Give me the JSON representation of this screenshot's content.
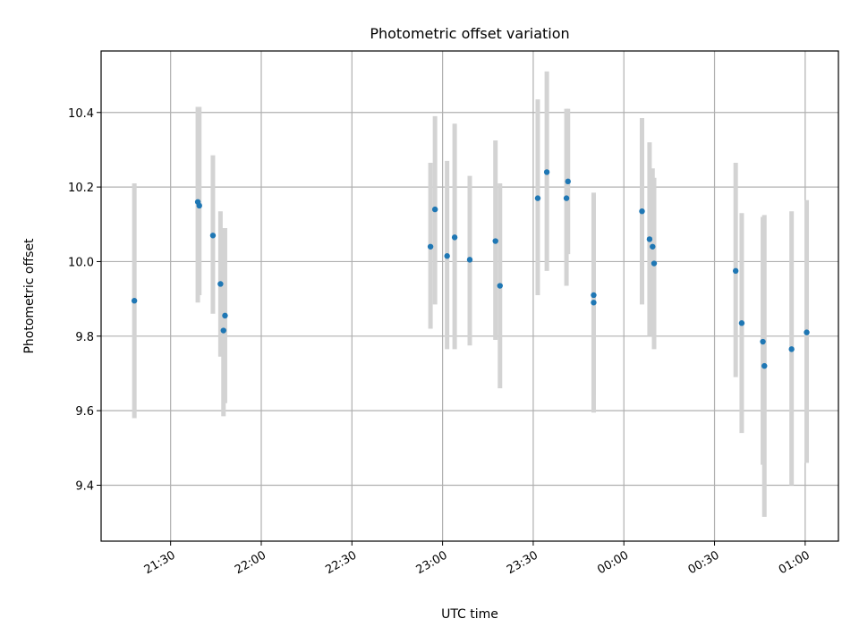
{
  "chart_data": {
    "type": "scatter",
    "title": "Photometric offset variation",
    "xlabel": "UTC time",
    "ylabel": "Photometric offset",
    "x_unit": "UTC time (HH:MM, rolls over midnight)",
    "xlim": [
      "21:07",
      "01:11"
    ],
    "ylim": [
      9.25,
      10.565
    ],
    "grid": true,
    "x_ticks": [
      "21:30",
      "22:00",
      "22:30",
      "23:00",
      "23:30",
      "00:00",
      "00:30",
      "01:00"
    ],
    "y_ticks": [
      "9.4",
      "9.6",
      "9.8",
      "10.0",
      "10.2",
      "10.4"
    ],
    "marker_color": "#1f77b4",
    "errorbar_color": "#d3d3d3",
    "points": [
      {
        "x": "21:18:00",
        "y": 9.895,
        "ylow": 9.58,
        "yhigh": 10.21
      },
      {
        "x": "21:39:00",
        "y": 10.16,
        "ylow": 9.89,
        "yhigh": 10.415
      },
      {
        "x": "21:39:30",
        "y": 10.15,
        "ylow": 9.91,
        "yhigh": 10.415
      },
      {
        "x": "21:44:00",
        "y": 10.07,
        "ylow": 9.86,
        "yhigh": 10.285
      },
      {
        "x": "21:46:30",
        "y": 9.94,
        "ylow": 9.745,
        "yhigh": 10.135
      },
      {
        "x": "21:47:30",
        "y": 9.815,
        "ylow": 9.585,
        "yhigh": 10.09
      },
      {
        "x": "21:48:00",
        "y": 9.855,
        "ylow": 9.62,
        "yhigh": 10.09
      },
      {
        "x": "22:56:00",
        "y": 10.04,
        "ylow": 9.82,
        "yhigh": 10.265
      },
      {
        "x": "22:57:30",
        "y": 10.14,
        "ylow": 9.885,
        "yhigh": 10.39
      },
      {
        "x": "23:01:30",
        "y": 10.015,
        "ylow": 9.765,
        "yhigh": 10.27
      },
      {
        "x": "23:04:00",
        "y": 10.065,
        "ylow": 9.765,
        "yhigh": 10.37
      },
      {
        "x": "23:09:00",
        "y": 10.005,
        "ylow": 9.775,
        "yhigh": 10.23
      },
      {
        "x": "23:17:30",
        "y": 10.055,
        "ylow": 9.79,
        "yhigh": 10.325
      },
      {
        "x": "23:19:00",
        "y": 9.935,
        "ylow": 9.66,
        "yhigh": 10.21
      },
      {
        "x": "23:31:30",
        "y": 10.17,
        "ylow": 9.91,
        "yhigh": 10.435
      },
      {
        "x": "23:34:30",
        "y": 10.24,
        "ylow": 9.975,
        "yhigh": 10.51
      },
      {
        "x": "23:41:30",
        "y": 10.215,
        "ylow": 10.02,
        "yhigh": 10.41
      },
      {
        "x": "23:41:00",
        "y": 10.17,
        "ylow": 9.935,
        "yhigh": 10.41
      },
      {
        "x": "23:50:00",
        "y": 9.91,
        "ylow": 9.64,
        "yhigh": 10.185
      },
      {
        "x": "23:50:00",
        "y": 9.89,
        "ylow": 9.595,
        "yhigh": 10.18
      },
      {
        "x": "00:06:00",
        "y": 10.135,
        "ylow": 9.885,
        "yhigh": 10.385
      },
      {
        "x": "00:08:30",
        "y": 10.06,
        "ylow": 9.8,
        "yhigh": 10.32
      },
      {
        "x": "00:09:30",
        "y": 10.04,
        "ylow": 9.8,
        "yhigh": 10.25
      },
      {
        "x": "00:10:00",
        "y": 9.995,
        "ylow": 9.765,
        "yhigh": 10.225
      },
      {
        "x": "00:37:00",
        "y": 9.975,
        "ylow": 9.69,
        "yhigh": 10.265
      },
      {
        "x": "00:39:00",
        "y": 9.835,
        "ylow": 9.54,
        "yhigh": 10.13
      },
      {
        "x": "00:46:00",
        "y": 9.785,
        "ylow": 9.455,
        "yhigh": 10.12
      },
      {
        "x": "00:46:30",
        "y": 9.72,
        "ylow": 9.315,
        "yhigh": 10.125
      },
      {
        "x": "00:55:30",
        "y": 9.765,
        "ylow": 9.4,
        "yhigh": 10.135
      },
      {
        "x": "01:00:30",
        "y": 9.81,
        "ylow": 9.46,
        "yhigh": 10.165
      }
    ]
  }
}
